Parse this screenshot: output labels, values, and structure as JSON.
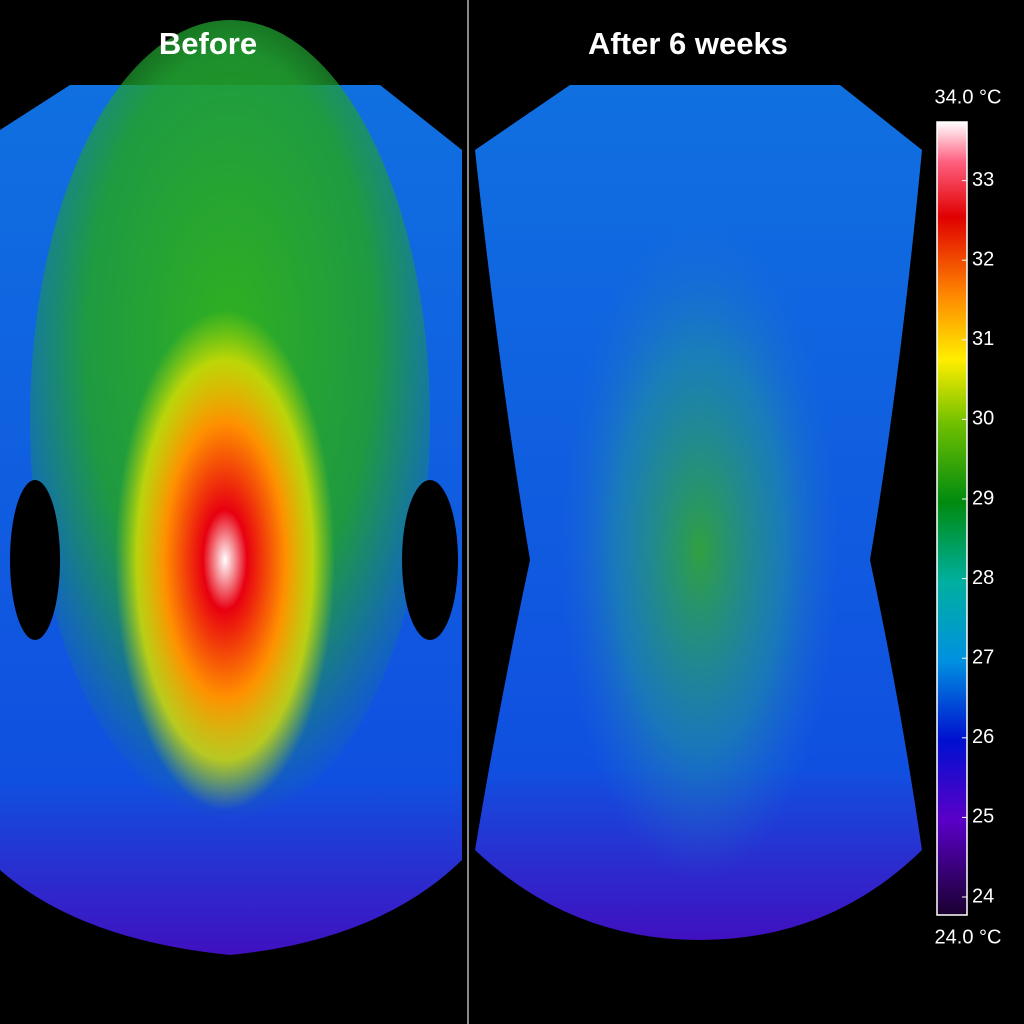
{
  "panels": [
    {
      "title": "Before"
    },
    {
      "title": "After 6 weeks"
    }
  ],
  "colorbar": {
    "range": [
      {
        "value": 24,
        "label": "24.0 °C"
      },
      {
        "value": 34,
        "label": "34.0 °C"
      }
    ],
    "ticks": [
      24,
      25,
      26,
      27,
      28,
      29,
      30,
      31,
      32,
      33
    ]
  }
}
